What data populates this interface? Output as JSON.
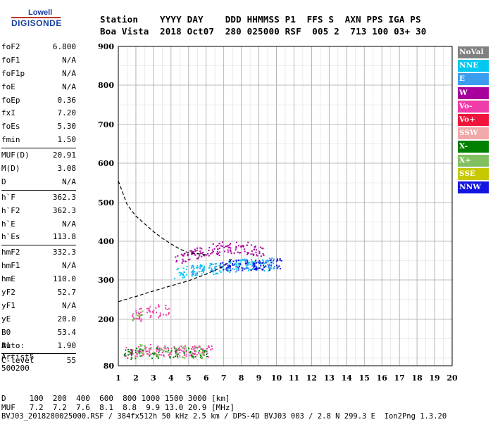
{
  "logo": {
    "line1": "Lowell",
    "line2": "DIGISONDE"
  },
  "header": {
    "labels": "Station    YYYY DAY    DDD HHMMSS P1  FFS S  AXN PPS IGA PS",
    "values": "Boa Vista  2018 Oct07  280 025000 RSF  005 2  713 100 03+ 30"
  },
  "params": [
    [
      {
        "k": "foF2",
        "v": "6.800"
      },
      {
        "k": "foF1",
        "v": "N/A"
      },
      {
        "k": "foF1p",
        "v": "N/A"
      },
      {
        "k": "foE",
        "v": "N/A"
      },
      {
        "k": "foEp",
        "v": "0.36"
      },
      {
        "k": "fxI",
        "v": "7.20"
      },
      {
        "k": "foEs",
        "v": "5.30"
      },
      {
        "k": "fmin",
        "v": "1.50"
      }
    ],
    [
      {
        "k": "MUF(D)",
        "v": "20.91"
      },
      {
        "k": "M(D)",
        "v": "3.08"
      },
      {
        "k": "D",
        "v": "N/A"
      }
    ],
    [
      {
        "k": "h`F",
        "v": "362.3"
      },
      {
        "k": "h`F2",
        "v": "362.3"
      },
      {
        "k": "h`E",
        "v": "N/A"
      },
      {
        "k": "h`Es",
        "v": "113.8"
      }
    ],
    [
      {
        "k": "hmF2",
        "v": "332.3"
      },
      {
        "k": "hmF1",
        "v": "N/A"
      },
      {
        "k": "hmE",
        "v": "110.0"
      },
      {
        "k": "yF2",
        "v": "52.7"
      },
      {
        "k": "yF1",
        "v": "N/A"
      },
      {
        "k": "yE",
        "v": "20.0"
      },
      {
        "k": "B0",
        "v": "53.4"
      },
      {
        "k": "B1",
        "v": "1.90"
      }
    ],
    [
      {
        "k": "C-level",
        "v": "55"
      }
    ]
  ],
  "auto": {
    "line1": "Auto:",
    "line2": "Artist5",
    "line3": "500200"
  },
  "bottom": {
    "d_row": "D     100  200  400  600  800 1000 1500 3000 [km]",
    "muf_row": "MUF   7.2  7.2  7.6  8.1  8.8  9.9 13.0 20.9 [MHz]",
    "footer": "BVJ03_2018280025000.RSF / 384fx512h 50 kHz 2.5 km / DPS-4D BVJ03 003 / 2.8 N 299.3 E  Ion2Png 1.3.20"
  },
  "legend": [
    {
      "label": "NoVal",
      "color": "#808080"
    },
    {
      "label": "NNE",
      "color": "#00c8f0"
    },
    {
      "label": "E",
      "color": "#3c9cf0"
    },
    {
      "label": "W",
      "color": "#a8009c"
    },
    {
      "label": "Vo-",
      "color": "#f03ca8"
    },
    {
      "label": "Vo+",
      "color": "#f0143c"
    },
    {
      "label": "SSW",
      "color": "#f0a8a8"
    },
    {
      "label": "X-",
      "color": "#008000"
    },
    {
      "label": "X+",
      "color": "#80c060"
    },
    {
      "label": "SSE",
      "color": "#c8c800"
    },
    {
      "label": "NNW",
      "color": "#1414e0"
    }
  ],
  "chart_data": {
    "type": "scatter",
    "xlabel": "",
    "ylabel": "",
    "xlim": [
      1,
      20
    ],
    "ylim": [
      80,
      900
    ],
    "x_ticks": [
      "1",
      "2",
      "3",
      "4",
      "5",
      "6",
      "7",
      "8",
      "9",
      "10",
      "11",
      "12",
      "13",
      "14",
      "15",
      "16",
      "17",
      "18",
      "19",
      "20"
    ],
    "y_ticks": [
      "80",
      "200",
      "300",
      "400",
      "500",
      "600",
      "700",
      "800",
      "900"
    ],
    "grid": true,
    "legend_position": "right",
    "series": [
      {
        "name": "W",
        "color": "#a8009c",
        "x": [
          4.5,
          5.0,
          5.5,
          6.0,
          6.5,
          7.0,
          7.5,
          8.0,
          8.5,
          9.0
        ],
        "y": [
          360,
          365,
          370,
          375,
          380,
          385,
          385,
          385,
          380,
          375
        ]
      },
      {
        "name": "NNE",
        "color": "#00c8f0",
        "x": [
          4.5,
          5.0,
          5.5,
          6.0,
          6.5,
          7.0,
          7.5,
          8.0,
          8.5,
          9.0,
          9.5
        ],
        "y": [
          320,
          322,
          325,
          330,
          330,
          335,
          335,
          340,
          340,
          340,
          340
        ]
      },
      {
        "name": "NNW",
        "color": "#1414e0",
        "x": [
          7.0,
          7.5,
          8.0,
          8.5,
          9.0,
          9.5,
          10.0
        ],
        "y": [
          340,
          340,
          340,
          338,
          338,
          340,
          342
        ]
      },
      {
        "name": "E",
        "color": "#3c9cf0",
        "x": [
          5.5,
          6.5,
          7.5,
          8.5,
          9.5
        ],
        "y": [
          325,
          330,
          338,
          342,
          345
        ]
      },
      {
        "name": "Vo-",
        "color": "#f03ca8",
        "x": [
          1.7,
          2.0,
          2.5,
          3.0,
          3.5,
          4.0,
          4.5,
          5.0,
          5.5,
          6.0,
          2.0,
          2.5,
          3.0,
          3.5
        ],
        "y": [
          115,
          118,
          120,
          122,
          120,
          118,
          120,
          120,
          118,
          118,
          210,
          215,
          220,
          225
        ]
      },
      {
        "name": "X-",
        "color": "#008000",
        "x": [
          1.6,
          2.0,
          3.0,
          4.0,
          5.0,
          5.8
        ],
        "y": [
          112,
          112,
          113,
          113,
          114,
          114
        ]
      },
      {
        "name": "X+",
        "color": "#80c060",
        "x": [
          2.0,
          2.5,
          3.5,
          4.5,
          5.5
        ],
        "y": [
          208,
          122,
          115,
          116,
          117
        ]
      }
    ],
    "profile_curve": {
      "x": [
        1.0,
        2.0,
        3.0,
        4.0,
        5.0,
        6.0,
        7.0,
        7.5
      ],
      "y": [
        245,
        258,
        272,
        285,
        298,
        315,
        335,
        355
      ]
    },
    "extrapolated_curve": {
      "x": [
        1.0,
        1.5,
        2.0,
        2.5,
        3.0,
        3.5,
        4.0,
        4.5,
        5.0,
        5.5,
        6.0
      ],
      "y": [
        555,
        495,
        465,
        445,
        425,
        408,
        393,
        380,
        370,
        368,
        365
      ]
    }
  }
}
